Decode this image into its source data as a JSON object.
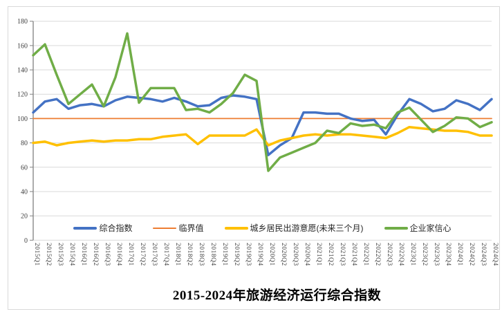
{
  "header": {
    "title": "2015-2024年旅游经济运行综合指数"
  },
  "y_axis": {
    "ticks": [
      0,
      20,
      40,
      60,
      80,
      100,
      120,
      140,
      160,
      180
    ],
    "min": 0,
    "max": 180,
    "step": 20
  },
  "legend": {
    "items": [
      {
        "label": "综合指数",
        "color": "#4472C4",
        "style": "thick"
      },
      {
        "label": "临界值",
        "color": "#ED7D31",
        "style": "thin"
      },
      {
        "label": "城乡居民出游意愿(未来三个月)",
        "color": "#FFC000",
        "style": "thick"
      },
      {
        "label": "企业家信心",
        "color": "#70AD47",
        "style": "thick"
      }
    ]
  },
  "colors": {
    "gridline": "#d9d9d9",
    "axis": "#808080",
    "tick_label": "#404040",
    "frame_border": "#d9d9d9",
    "background": "#ffffff"
  },
  "chart_data": {
    "type": "line",
    "title": "2015-2024年旅游经济运行综合指数",
    "xlabel": "",
    "ylabel": "",
    "ylim": [
      0,
      180
    ],
    "grid": true,
    "legend_position": "bottom-inside",
    "categories": [
      "2015Q1",
      "2015Q2",
      "2015Q3",
      "2015Q4",
      "2016Q1",
      "2016Q2",
      "2016Q3",
      "2016Q4",
      "2017Q1",
      "2017Q2",
      "2017Q3",
      "2017Q4",
      "2018Q1",
      "2018Q2",
      "2018Q3",
      "2018Q4",
      "2019Q1",
      "2019Q2",
      "2019Q3",
      "2019Q4",
      "2020Q1",
      "2020Q2",
      "2020Q3",
      "2020Q4",
      "2021Q1",
      "2021Q2",
      "2021Q3",
      "2021Q4",
      "2022Q1",
      "2022Q2",
      "2022Q3",
      "2022Q4",
      "2023Q1",
      "2023Q2",
      "2023Q3",
      "2023Q4",
      "2024Q1",
      "2024Q2",
      "2024Q3",
      "2024Q4"
    ],
    "series": [
      {
        "id": "composite-index",
        "name": "综合指数",
        "color": "#4472C4",
        "width": 3.5,
        "values": [
          105,
          114,
          116,
          108,
          111,
          112,
          110,
          115,
          118,
          117,
          116,
          114,
          117,
          114,
          110,
          111,
          117,
          119,
          118,
          116,
          70,
          78,
          84,
          105,
          105,
          104,
          104,
          100,
          98,
          99,
          87,
          103,
          116,
          112,
          106,
          108,
          115,
          112,
          107,
          116
        ]
      },
      {
        "id": "critical-value",
        "name": "临界值",
        "color": "#ED7D31",
        "width": 1.8,
        "values": [
          100,
          100,
          100,
          100,
          100,
          100,
          100,
          100,
          100,
          100,
          100,
          100,
          100,
          100,
          100,
          100,
          100,
          100,
          100,
          100,
          100,
          100,
          100,
          100,
          100,
          100,
          100,
          100,
          100,
          100,
          100,
          100,
          100,
          100,
          100,
          100,
          100,
          100,
          100,
          100
        ]
      },
      {
        "id": "travel-intention",
        "name": "城乡居民出游意愿(未来三个月)",
        "color": "#FFC000",
        "width": 3.5,
        "values": [
          80,
          81,
          78,
          80,
          81,
          82,
          81,
          82,
          82,
          83,
          83,
          85,
          86,
          87,
          79,
          86,
          86,
          86,
          86,
          91,
          78,
          82,
          84,
          86,
          87,
          86,
          87,
          87,
          86,
          85,
          84,
          88,
          93,
          92,
          91,
          90,
          90,
          89,
          86,
          86
        ]
      },
      {
        "id": "entrepreneur-confidence",
        "name": "企业家信心",
        "color": "#70AD47",
        "width": 3.5,
        "values": [
          152,
          161,
          136,
          112,
          120,
          128,
          110,
          134,
          170,
          113,
          125,
          125,
          125,
          107,
          108,
          105,
          112,
          121,
          136,
          131,
          57,
          68,
          72,
          76,
          80,
          90,
          88,
          96,
          94,
          95,
          92,
          105,
          109,
          99,
          89,
          94,
          101,
          100,
          93,
          97
        ]
      }
    ]
  }
}
